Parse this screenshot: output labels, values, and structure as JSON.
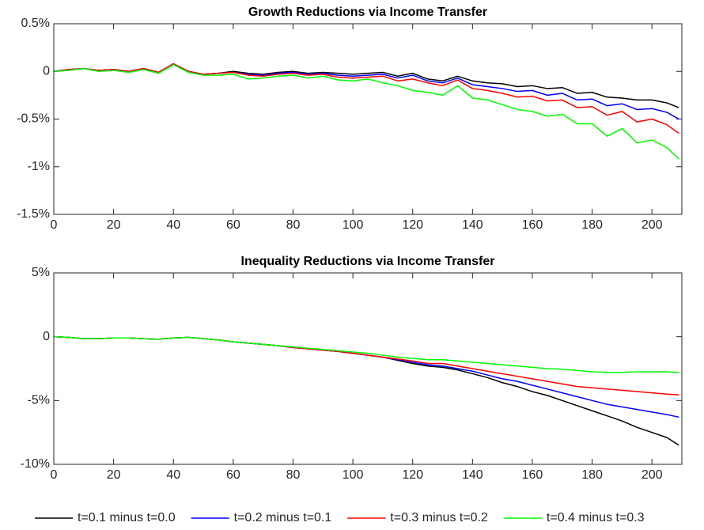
{
  "chart_data": [
    {
      "type": "line",
      "title": "Growth Reductions via Income Transfer",
      "x": [
        0,
        5,
        10,
        15,
        20,
        25,
        30,
        35,
        40,
        45,
        50,
        55,
        60,
        65,
        70,
        75,
        80,
        85,
        90,
        95,
        100,
        105,
        110,
        115,
        120,
        125,
        130,
        135,
        140,
        145,
        150,
        155,
        160,
        165,
        170,
        175,
        180,
        185,
        190,
        195,
        200,
        205,
        209
      ],
      "xlim": [
        0,
        210
      ],
      "xticks": [
        0,
        20,
        40,
        60,
        80,
        100,
        120,
        140,
        160,
        180,
        200
      ],
      "ylim": [
        -1.5,
        0.5
      ],
      "yticks": [
        {
          "value": 0.5,
          "label": "0.5%"
        },
        0,
        {
          "value": -0.5,
          "label": "-0.5%"
        },
        {
          "value": -1,
          "label": "-1%"
        },
        {
          "value": -1.5,
          "label": "-1.5%"
        }
      ],
      "series": [
        {
          "color": "#000000",
          "values": [
            0,
            0.02,
            0.03,
            0.01,
            0.02,
            0,
            0.03,
            -0.01,
            0.08,
            0,
            -0.03,
            -0.02,
            0,
            -0.02,
            -0.03,
            -0.01,
            0,
            -0.02,
            -0.01,
            -0.02,
            -0.03,
            -0.02,
            -0.01,
            -0.05,
            -0.02,
            -0.08,
            -0.1,
            -0.05,
            -0.1,
            -0.12,
            -0.13,
            -0.16,
            -0.15,
            -0.18,
            -0.17,
            -0.23,
            -0.22,
            -0.27,
            -0.28,
            -0.3,
            -0.3,
            -0.33,
            -0.38
          ]
        },
        {
          "color": "#0000ff",
          "values": [
            0,
            0.02,
            0.03,
            0.01,
            0.02,
            0,
            0.03,
            -0.01,
            0.08,
            0,
            -0.03,
            -0.02,
            -0.01,
            -0.03,
            -0.04,
            -0.02,
            -0.01,
            -0.03,
            -0.02,
            -0.04,
            -0.05,
            -0.04,
            -0.03,
            -0.07,
            -0.04,
            -0.1,
            -0.12,
            -0.07,
            -0.14,
            -0.16,
            -0.18,
            -0.21,
            -0.2,
            -0.25,
            -0.23,
            -0.3,
            -0.29,
            -0.36,
            -0.34,
            -0.4,
            -0.39,
            -0.43,
            -0.5
          ]
        },
        {
          "color": "#ff0000",
          "values": [
            0,
            0.02,
            0.03,
            0.01,
            0.02,
            0,
            0.03,
            -0.01,
            0.08,
            0,
            -0.03,
            -0.02,
            -0.01,
            -0.04,
            -0.05,
            -0.03,
            -0.02,
            -0.04,
            -0.03,
            -0.06,
            -0.07,
            -0.06,
            -0.05,
            -0.1,
            -0.08,
            -0.12,
            -0.15,
            -0.09,
            -0.18,
            -0.2,
            -0.23,
            -0.27,
            -0.26,
            -0.31,
            -0.3,
            -0.38,
            -0.37,
            -0.46,
            -0.42,
            -0.53,
            -0.5,
            -0.56,
            -0.65
          ]
        },
        {
          "color": "#00ff00",
          "values": [
            0,
            0.01,
            0.03,
            0,
            0.01,
            -0.01,
            0.02,
            -0.02,
            0.07,
            -0.01,
            -0.04,
            -0.04,
            -0.03,
            -0.08,
            -0.07,
            -0.05,
            -0.04,
            -0.07,
            -0.05,
            -0.09,
            -0.1,
            -0.08,
            -0.12,
            -0.15,
            -0.2,
            -0.22,
            -0.25,
            -0.15,
            -0.28,
            -0.3,
            -0.35,
            -0.4,
            -0.42,
            -0.47,
            -0.45,
            -0.55,
            -0.55,
            -0.68,
            -0.6,
            -0.75,
            -0.72,
            -0.8,
            -0.92
          ]
        }
      ]
    },
    {
      "type": "line",
      "title": "Inequality Reductions via Income Transfer",
      "x": [
        0,
        5,
        10,
        15,
        20,
        25,
        30,
        35,
        40,
        45,
        50,
        55,
        60,
        65,
        70,
        75,
        80,
        85,
        90,
        95,
        100,
        105,
        110,
        115,
        120,
        125,
        130,
        135,
        140,
        145,
        150,
        155,
        160,
        165,
        170,
        175,
        180,
        185,
        190,
        195,
        200,
        205,
        209
      ],
      "xlim": [
        0,
        210
      ],
      "xticks": [
        0,
        20,
        40,
        60,
        80,
        100,
        120,
        140,
        160,
        180,
        200
      ],
      "ylim": [
        -10,
        5
      ],
      "yticks": [
        {
          "value": 5,
          "label": "5%"
        },
        0,
        {
          "value": -5,
          "label": "-5%"
        },
        {
          "value": -10,
          "label": "-10%"
        }
      ],
      "legend": "bottom",
      "series": [
        {
          "name": "t=0.1 minus t=0.0",
          "color": "#000000",
          "values": [
            0,
            -0.05,
            -0.15,
            -0.15,
            -0.1,
            -0.1,
            -0.15,
            -0.2,
            -0.1,
            -0.05,
            -0.15,
            -0.25,
            -0.4,
            -0.5,
            -0.6,
            -0.7,
            -0.85,
            -0.95,
            -1.05,
            -1.15,
            -1.3,
            -1.45,
            -1.6,
            -1.85,
            -2.1,
            -2.3,
            -2.4,
            -2.6,
            -2.9,
            -3.2,
            -3.6,
            -3.9,
            -4.3,
            -4.6,
            -5,
            -5.4,
            -5.8,
            -6.2,
            -6.6,
            -7.1,
            -7.5,
            -7.9,
            -8.5
          ]
        },
        {
          "name": "t=0.2 minus t=0.1",
          "color": "#0000ff",
          "values": [
            0,
            -0.05,
            -0.15,
            -0.15,
            -0.1,
            -0.1,
            -0.15,
            -0.2,
            -0.1,
            -0.05,
            -0.15,
            -0.25,
            -0.4,
            -0.5,
            -0.6,
            -0.7,
            -0.85,
            -0.95,
            -1.05,
            -1.15,
            -1.3,
            -1.45,
            -1.6,
            -1.8,
            -2,
            -2.2,
            -2.3,
            -2.5,
            -2.7,
            -3,
            -3.3,
            -3.5,
            -3.8,
            -4.1,
            -4.4,
            -4.7,
            -5,
            -5.3,
            -5.5,
            -5.7,
            -5.9,
            -6.1,
            -6.3
          ]
        },
        {
          "name": "t=0.3 minus t=0.2",
          "color": "#ff0000",
          "values": [
            0,
            -0.05,
            -0.15,
            -0.15,
            -0.1,
            -0.1,
            -0.15,
            -0.2,
            -0.1,
            -0.05,
            -0.15,
            -0.25,
            -0.4,
            -0.5,
            -0.6,
            -0.7,
            -0.85,
            -0.95,
            -1.05,
            -1.15,
            -1.3,
            -1.45,
            -1.6,
            -1.75,
            -1.9,
            -2.1,
            -2.1,
            -2.3,
            -2.5,
            -2.7,
            -2.9,
            -3.1,
            -3.3,
            -3.5,
            -3.7,
            -3.9,
            -4,
            -4.1,
            -4.2,
            -4.3,
            -4.4,
            -4.5,
            -4.55
          ]
        },
        {
          "name": "t=0.4 minus t=0.3",
          "color": "#00ff00",
          "values": [
            0,
            -0.05,
            -0.15,
            -0.15,
            -0.1,
            -0.1,
            -0.15,
            -0.2,
            -0.1,
            -0.05,
            -0.15,
            -0.25,
            -0.4,
            -0.5,
            -0.6,
            -0.7,
            -0.8,
            -0.9,
            -1,
            -1.1,
            -1.2,
            -1.3,
            -1.45,
            -1.6,
            -1.7,
            -1.8,
            -1.8,
            -1.9,
            -2,
            -2.1,
            -2.2,
            -2.3,
            -2.4,
            -2.5,
            -2.55,
            -2.65,
            -2.75,
            -2.8,
            -2.8,
            -2.75,
            -2.75,
            -2.75,
            -2.8
          ]
        }
      ]
    }
  ]
}
